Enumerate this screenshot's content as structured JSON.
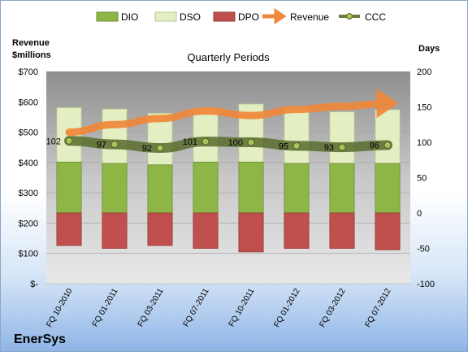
{
  "chart_data": {
    "type": "bar",
    "title": "Quarterly Periods",
    "company": "EnerSys",
    "left_axis_label": [
      "Revenue",
      "$millions"
    ],
    "right_axis_label": "Days",
    "categories": [
      "FQ 10-2010",
      "FQ 01-2011",
      "FQ 03-2011",
      "FQ 07-2011",
      "FQ 10-2011",
      "FQ 01-2012",
      "FQ 03-2012",
      "FQ 07-2012"
    ],
    "left_ticks": [
      "$-",
      "$100",
      "$200",
      "$300",
      "$400",
      "$500",
      "$600",
      "$700"
    ],
    "left_ylim": [
      0,
      700
    ],
    "right_ylim": [
      -100,
      200
    ],
    "right_ticks": [
      -100,
      -50,
      0,
      50,
      100,
      150,
      200
    ],
    "legend_position": "top",
    "series": [
      {
        "name": "DIO",
        "color": "#8db646",
        "values": [
          72,
          70,
          68,
          72,
          72,
          70,
          70,
          70
        ]
      },
      {
        "name": "DSO",
        "color": "#e3eec3",
        "values": [
          77,
          77,
          73,
          76,
          82,
          79,
          73,
          76
        ]
      },
      {
        "name": "DPO",
        "color": "#c0504d",
        "values": [
          -46,
          -50,
          -46,
          -50,
          -55,
          -50,
          -50,
          -52
        ]
      },
      {
        "name": "Revenue",
        "color": "#f79646",
        "values": [
          500,
          525,
          545,
          570,
          555,
          575,
          585,
          595
        ]
      },
      {
        "name": "CCC",
        "color": "#6b7f3a",
        "values": [
          102,
          97,
          92,
          101,
          100,
          95,
          93,
          96
        ]
      }
    ],
    "ccc_labels": [
      "102",
      "97",
      "92",
      "101",
      "100",
      "95",
      "93",
      "96"
    ]
  }
}
